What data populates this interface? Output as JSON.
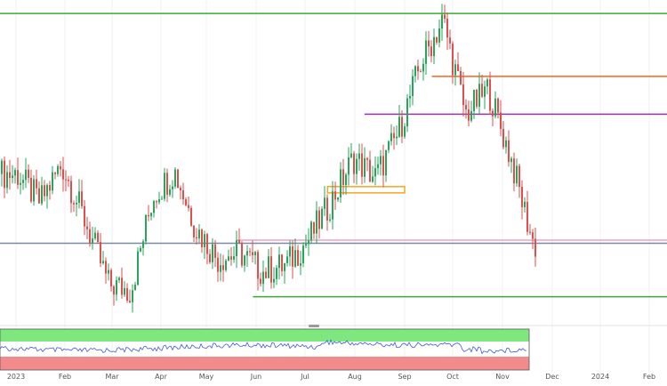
{
  "chart_data": {
    "type": "candlestick",
    "title": "",
    "xlabel": "",
    "ylabel": "",
    "grid": true,
    "legend": "none",
    "x_ticks": [
      "2023",
      "Feb",
      "Mar",
      "Apr",
      "May",
      "Jun",
      "Jul",
      "Aug",
      "Sep",
      "Oct",
      "Nov",
      "Dec",
      "2024",
      "Feb"
    ],
    "price_range": [
      0,
      100
    ],
    "candles": [
      {
        "date": "2023-01-02",
        "close": 47
      },
      {
        "date": "2023-01-16",
        "close": 38
      },
      {
        "date": "2023-01-30",
        "close": 50
      },
      {
        "date": "2023-02-13",
        "close": 32
      },
      {
        "date": "2023-02-27",
        "close": 12
      },
      {
        "date": "2023-03-13",
        "close": 10
      },
      {
        "date": "2023-03-27",
        "close": 40
      },
      {
        "date": "2023-04-10",
        "close": 48
      },
      {
        "date": "2023-04-24",
        "close": 30
      },
      {
        "date": "2023-05-08",
        "close": 20
      },
      {
        "date": "2023-05-22",
        "close": 22
      },
      {
        "date": "2023-06-05",
        "close": 16
      },
      {
        "date": "2023-06-19",
        "close": 18
      },
      {
        "date": "2023-07-03",
        "close": 26
      },
      {
        "date": "2023-07-17",
        "close": 38
      },
      {
        "date": "2023-07-31",
        "close": 52
      },
      {
        "date": "2023-08-14",
        "close": 46
      },
      {
        "date": "2023-08-28",
        "close": 60
      },
      {
        "date": "2023-09-11",
        "close": 82
      },
      {
        "date": "2023-09-25",
        "close": 96
      },
      {
        "date": "2023-10-09",
        "close": 66
      },
      {
        "date": "2023-10-23",
        "close": 74
      },
      {
        "date": "2023-11-06",
        "close": 52
      },
      {
        "date": "2023-11-20",
        "close": 24
      }
    ],
    "levels": [
      {
        "value": 98,
        "color": "#3aaa35",
        "from": "2022-12-15"
      },
      {
        "value": 78,
        "color": "#f26522",
        "from": "2023-09-18"
      },
      {
        "value": 66,
        "color": "#9b30b5",
        "from": "2023-08-07"
      },
      {
        "value": 26,
        "color": "#f0a0c0",
        "from": "2023-05-20"
      },
      {
        "value": 25,
        "color": "#7a8aa0",
        "from": "2022-12-15"
      },
      {
        "value": 8,
        "color": "#3aaa35",
        "from": "2023-05-30"
      }
    ],
    "zone": {
      "from": "2023-07-15",
      "to": "2023-09-01",
      "low": 41,
      "high": 43,
      "color": "#f5a623"
    },
    "oscillator": {
      "upper_band_color": "#7ee87e",
      "lower_band_color": "#f28b8b",
      "line_color": "#3b5bdb"
    }
  }
}
